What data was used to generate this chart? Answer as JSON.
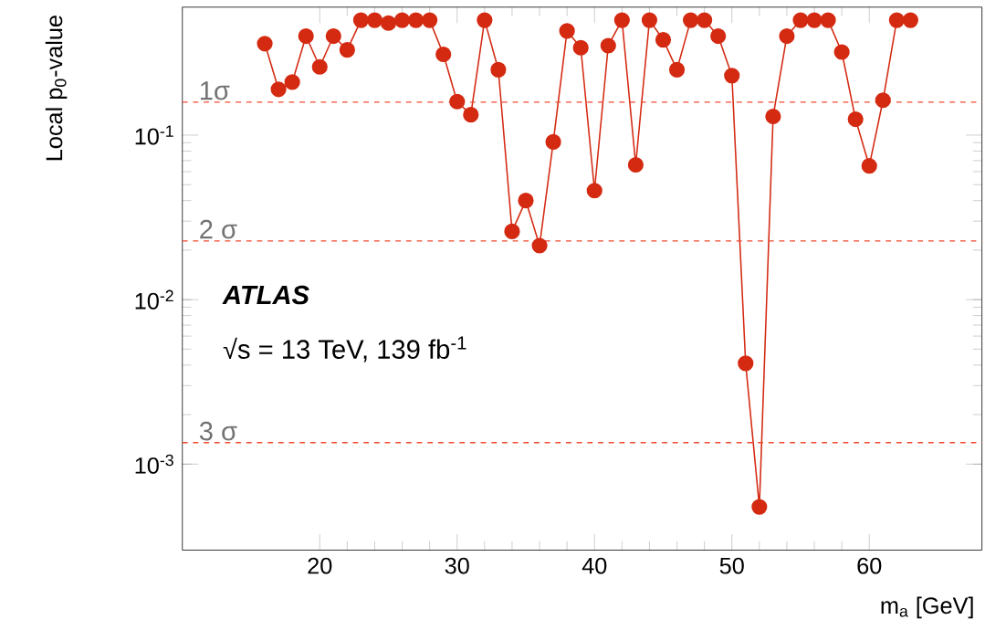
{
  "chart_data": {
    "type": "line",
    "xlabel": "m$_{a}$ [GeV]",
    "ylabel": "Local p$_{0}$-value",
    "x": [
      16,
      17,
      18,
      19,
      20,
      21,
      22,
      23,
      24,
      25,
      26,
      27,
      28,
      29,
      30,
      31,
      32,
      33,
      34,
      35,
      36,
      37,
      38,
      39,
      40,
      41,
      42,
      43,
      44,
      45,
      46,
      47,
      48,
      49,
      50,
      51,
      52,
      53,
      54,
      55,
      56,
      57,
      58,
      59,
      60,
      61,
      62,
      63
    ],
    "series": [
      {
        "color": "#d42a12",
        "values": [
          0.36,
          0.19,
          0.21,
          0.4,
          0.26,
          0.4,
          0.33,
          0.5,
          0.5,
          0.48,
          0.5,
          0.5,
          0.5,
          0.31,
          0.16,
          0.133,
          0.5,
          0.25,
          0.026,
          0.04,
          0.0213,
          0.091,
          0.43,
          0.34,
          0.046,
          0.35,
          0.5,
          0.066,
          0.5,
          0.38,
          0.25,
          0.5,
          0.5,
          0.4,
          0.23,
          0.0041,
          0.00055,
          0.13,
          0.4,
          0.5,
          0.5,
          0.5,
          0.32,
          0.125,
          0.065,
          0.163,
          0.5,
          0.5
        ]
      }
    ],
    "log": "y",
    "xlim": [
      10,
      68.2
    ],
    "ylim": [
      0.0003,
      0.6
    ],
    "xticks": [
      20,
      30,
      40,
      50,
      60
    ],
    "yticks": [
      {
        "value": 0.001,
        "label": "10$^{-3}$"
      },
      {
        "value": 0.01,
        "label": "10$^{-2}$"
      },
      {
        "value": 0.1,
        "label": "10$^{-1}$"
      }
    ],
    "marker": "circle",
    "line_style": "solid",
    "ref_lines": [
      {
        "axis": "y",
        "value": 0.1587,
        "label": "1σ",
        "color": "#f04a30",
        "line_style": "dashed"
      },
      {
        "axis": "y",
        "value": 0.02275,
        "label": "2 σ",
        "color": "#f04a30",
        "line_style": "dashed"
      },
      {
        "axis": "y",
        "value": 0.00135,
        "label": "3 σ",
        "color": "#f04a30",
        "line_style": "dashed"
      }
    ],
    "annotations": [
      "ATLAS",
      "√s = 13 TeV, 139 fb$^{-1}$"
    ]
  }
}
